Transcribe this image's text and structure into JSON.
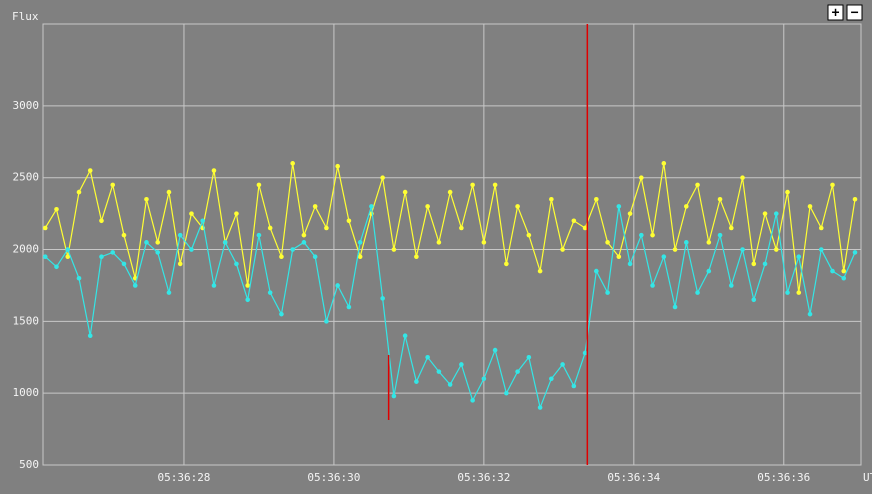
{
  "chart_data": {
    "type": "line",
    "y_label": "Flux",
    "x_label": "UT",
    "x": [
      26.15,
      26.3,
      26.45,
      26.6,
      26.75,
      26.9,
      27.05,
      27.2,
      27.35,
      27.5,
      27.65,
      27.8,
      27.95,
      28.1,
      28.25,
      28.4,
      28.55,
      28.7,
      28.85,
      29.0,
      29.15,
      29.3,
      29.45,
      29.6,
      29.75,
      29.9,
      30.05,
      30.2,
      30.35,
      30.5,
      30.65,
      30.8,
      30.95,
      31.1,
      31.25,
      31.4,
      31.55,
      31.7,
      31.85,
      32.0,
      32.15,
      32.3,
      32.45,
      32.6,
      32.75,
      32.9,
      33.05,
      33.2,
      33.35,
      33.5,
      33.65,
      33.8,
      33.95,
      34.1,
      34.25,
      34.4,
      34.55,
      34.7,
      34.85,
      35.0,
      35.15,
      35.3,
      35.45,
      35.6,
      35.75,
      35.9,
      36.05,
      36.2,
      36.35,
      36.5,
      36.65,
      36.8,
      36.95
    ],
    "series": [
      {
        "color": "#ffff33",
        "values": [
          2150,
          2280,
          1950,
          2400,
          2550,
          2200,
          2450,
          2100,
          1800,
          2350,
          2050,
          2400,
          1900,
          2250,
          2150,
          2550,
          2050,
          2250,
          1750,
          2450,
          2150,
          1950,
          2600,
          2100,
          2300,
          2150,
          2580,
          2200,
          1950,
          2250,
          2500,
          2000,
          2400,
          1950,
          2300,
          2050,
          2400,
          2150,
          2450,
          2050,
          2450,
          1900,
          2300,
          2100,
          1850,
          2350,
          2000,
          2200,
          2150,
          2350,
          2050,
          1950,
          2250,
          2500,
          2100,
          2600,
          2000,
          2300,
          2450,
          2050,
          2350,
          2150,
          2500,
          1900,
          2250,
          2000,
          2400,
          1700,
          2300,
          2150,
          2450,
          1850,
          2350
        ]
      },
      {
        "color": "#33e6e6",
        "values": [
          1950,
          1880,
          2000,
          1800,
          1400,
          1950,
          1980,
          1900,
          1750,
          2050,
          1980,
          1700,
          2100,
          2000,
          2200,
          1750,
          2050,
          1900,
          1650,
          2100,
          1700,
          1550,
          2000,
          2050,
          1950,
          1500,
          1750,
          1600,
          2050,
          2300,
          1660,
          980,
          1400,
          1080,
          1250,
          1150,
          1060,
          1200,
          950,
          1100,
          1300,
          1000,
          1150,
          1250,
          900,
          1100,
          1200,
          1050,
          1280,
          1850,
          1700,
          2300,
          1900,
          2100,
          1750,
          1950,
          1600,
          2050,
          1700,
          1850,
          2100,
          1750,
          2000,
          1650,
          1900,
          2250,
          1700,
          1950,
          1550,
          2000,
          1850,
          1800,
          1980
        ]
      }
    ],
    "markers": [
      30.73,
      33.38
    ],
    "marker_color": "#e00000",
    "xlim": [
      26.12,
      37.03
    ],
    "xticks": [
      {
        "value": 28,
        "label": "05:36:28"
      },
      {
        "value": 30,
        "label": "05:36:30"
      },
      {
        "value": 32,
        "label": "05:36:32"
      },
      {
        "value": 34,
        "label": "05:36:34"
      },
      {
        "value": 36,
        "label": "05:36:36"
      }
    ],
    "ylim": [
      500,
      3570
    ],
    "yticks": [
      500,
      1000,
      1500,
      2000,
      2500,
      3000
    ],
    "grid": true
  },
  "controls": {
    "zoom_in": "+",
    "zoom_out": "−"
  }
}
